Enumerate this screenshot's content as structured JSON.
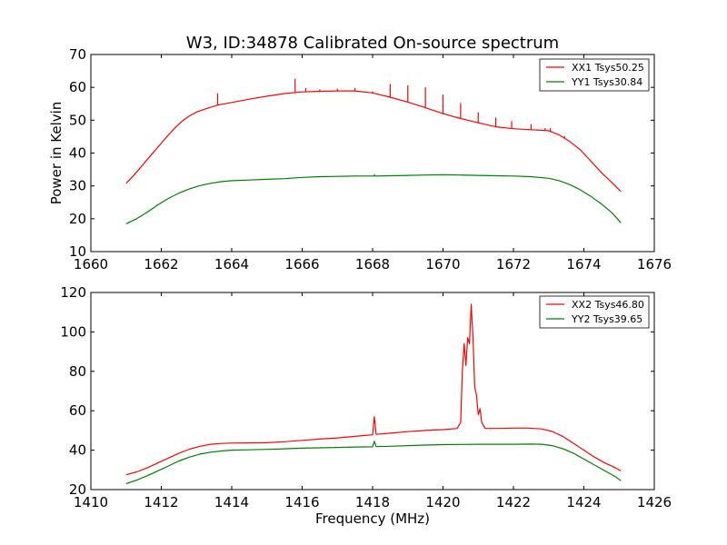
{
  "chart_data": [
    {
      "type": "line",
      "title": "W3, ID:34878 Calibrated On-source spectrum",
      "xlabel": "",
      "ylabel": "Power in Kelvin",
      "xlim": [
        1660,
        1676
      ],
      "ylim": [
        10,
        70
      ],
      "xticks": [
        "1660",
        "1662",
        "1664",
        "1666",
        "1668",
        "1670",
        "1672",
        "1674",
        "1676"
      ],
      "yticks": [
        "10",
        "20",
        "30",
        "40",
        "50",
        "60",
        "70"
      ],
      "grid": false,
      "legend_position": "top-right",
      "series": [
        {
          "name": "XX1 Tsys50.25",
          "color": "#ff0000",
          "points": [
            [
              1661.0,
              30.8
            ],
            [
              1661.2,
              33
            ],
            [
              1661.4,
              35.5
            ],
            [
              1661.6,
              38
            ],
            [
              1661.8,
              40.5
            ],
            [
              1662.0,
              43
            ],
            [
              1662.2,
              45.5
            ],
            [
              1662.4,
              47.8
            ],
            [
              1662.6,
              49.8
            ],
            [
              1662.8,
              51.3
            ],
            [
              1663.0,
              52.5
            ],
            [
              1663.3,
              53.6
            ],
            [
              1663.6,
              54.6
            ],
            [
              1664.0,
              55.4
            ],
            [
              1664.5,
              56.4
            ],
            [
              1665.0,
              57.3
            ],
            [
              1665.5,
              58.1
            ],
            [
              1666.0,
              58.6
            ],
            [
              1666.5,
              58.8
            ],
            [
              1667.0,
              58.9
            ],
            [
              1667.5,
              58.9
            ],
            [
              1668.0,
              58.3
            ],
            [
              1668.5,
              57
            ],
            [
              1669.0,
              55.5
            ],
            [
              1669.5,
              53.8
            ],
            [
              1670.0,
              52
            ],
            [
              1670.5,
              50.5
            ],
            [
              1671.0,
              49.2
            ],
            [
              1671.5,
              48
            ],
            [
              1672.0,
              47.4
            ],
            [
              1672.5,
              47.1
            ],
            [
              1673.0,
              46.8
            ],
            [
              1673.3,
              45.5
            ],
            [
              1673.6,
              43.5
            ],
            [
              1673.9,
              41
            ],
            [
              1674.2,
              37.5
            ],
            [
              1674.5,
              34
            ],
            [
              1674.8,
              31
            ],
            [
              1675.05,
              28.3
            ]
          ],
          "spikes": [
            [
              1663.6,
              58.2
            ],
            [
              1665.8,
              62.6
            ],
            [
              1666.1,
              59.8
            ],
            [
              1666.5,
              59.4
            ],
            [
              1667.0,
              59.6
            ],
            [
              1667.5,
              59.8
            ],
            [
              1668.0,
              58.8
            ],
            [
              1668.5,
              61
            ],
            [
              1669.0,
              60.6
            ],
            [
              1669.5,
              60
            ],
            [
              1670.0,
              57.8
            ],
            [
              1670.5,
              55.2
            ],
            [
              1671.0,
              52.4
            ],
            [
              1671.5,
              50.8
            ],
            [
              1671.95,
              49.7
            ],
            [
              1672.5,
              48.8
            ],
            [
              1672.9,
              47.6
            ],
            [
              1673.05,
              47.6
            ],
            [
              1673.45,
              45.2
            ]
          ]
        },
        {
          "name": "YY1 Tsys30.84",
          "color": "#008000",
          "points": [
            [
              1661.0,
              18.5
            ],
            [
              1661.3,
              20
            ],
            [
              1661.6,
              22
            ],
            [
              1661.9,
              24.2
            ],
            [
              1662.2,
              26.2
            ],
            [
              1662.5,
              27.8
            ],
            [
              1662.8,
              29.1
            ],
            [
              1663.1,
              30.1
            ],
            [
              1663.4,
              30.8
            ],
            [
              1663.7,
              31.3
            ],
            [
              1664.0,
              31.6
            ],
            [
              1664.5,
              31.8
            ],
            [
              1665.0,
              32
            ],
            [
              1665.5,
              32.2
            ],
            [
              1666.0,
              32.6
            ],
            [
              1666.5,
              32.8
            ],
            [
              1667.0,
              32.9
            ],
            [
              1667.5,
              33
            ],
            [
              1668.0,
              33
            ],
            [
              1668.5,
              33.1
            ],
            [
              1669.0,
              33.2
            ],
            [
              1669.5,
              33.3
            ],
            [
              1670.0,
              33.4
            ],
            [
              1670.5,
              33.3
            ],
            [
              1671.0,
              33.2
            ],
            [
              1671.5,
              33.1
            ],
            [
              1672.0,
              33
            ],
            [
              1672.5,
              32.8
            ],
            [
              1673.0,
              32.3
            ],
            [
              1673.3,
              31.6
            ],
            [
              1673.6,
              30.4
            ],
            [
              1673.9,
              28.8
            ],
            [
              1674.2,
              26.8
            ],
            [
              1674.5,
              24.5
            ],
            [
              1674.8,
              21.8
            ],
            [
              1675.05,
              18.8
            ]
          ],
          "spikes": [
            [
              1668.05,
              33.6
            ]
          ]
        }
      ]
    },
    {
      "type": "line",
      "title": "",
      "xlabel": "Frequency (MHz)",
      "ylabel": "",
      "xlim": [
        1410,
        1426
      ],
      "ylim": [
        20,
        120
      ],
      "xticks": [
        "1410",
        "1412",
        "1414",
        "1416",
        "1418",
        "1420",
        "1422",
        "1424",
        "1426"
      ],
      "yticks": [
        "20",
        "40",
        "60",
        "80",
        "100",
        "120"
      ],
      "grid": false,
      "legend_position": "top-right",
      "series": [
        {
          "name": "XX2 Tsys46.80",
          "color": "#ff0000",
          "points": [
            [
              1411.0,
              27.5
            ],
            [
              1411.3,
              29
            ],
            [
              1411.6,
              31
            ],
            [
              1411.9,
              33.5
            ],
            [
              1412.2,
              36
            ],
            [
              1412.5,
              38.5
            ],
            [
              1412.8,
              40.5
            ],
            [
              1413.1,
              42
            ],
            [
              1413.4,
              43
            ],
            [
              1413.7,
              43.4
            ],
            [
              1414.0,
              43.6
            ],
            [
              1414.5,
              43.7
            ],
            [
              1415.0,
              43.8
            ],
            [
              1415.5,
              44.3
            ],
            [
              1416.0,
              45
            ],
            [
              1416.5,
              45.6
            ],
            [
              1417.0,
              46.2
            ],
            [
              1417.5,
              47
            ],
            [
              1418.0,
              47.8
            ],
            [
              1418.05,
              57
            ],
            [
              1418.1,
              48
            ],
            [
              1418.5,
              48.6
            ],
            [
              1419.0,
              49.4
            ],
            [
              1419.5,
              50
            ],
            [
              1420.0,
              50.4
            ],
            [
              1420.4,
              51
            ],
            [
              1420.5,
              54
            ],
            [
              1420.55,
              80
            ],
            [
              1420.6,
              94
            ],
            [
              1420.65,
              83
            ],
            [
              1420.7,
              97
            ],
            [
              1420.75,
              94
            ],
            [
              1420.8,
              114
            ],
            [
              1420.85,
              98
            ],
            [
              1420.9,
              72
            ],
            [
              1420.95,
              68
            ],
            [
              1421.0,
              58
            ],
            [
              1421.05,
              61
            ],
            [
              1421.1,
              54
            ],
            [
              1421.2,
              51
            ],
            [
              1421.6,
              51
            ],
            [
              1422.0,
              51.2
            ],
            [
              1422.4,
              51.2
            ],
            [
              1422.8,
              50.8
            ],
            [
              1423.1,
              49.5
            ],
            [
              1423.4,
              47
            ],
            [
              1423.7,
              43.5
            ],
            [
              1424.0,
              40
            ],
            [
              1424.3,
              36.5
            ],
            [
              1424.6,
              33.5
            ],
            [
              1424.9,
              31
            ],
            [
              1425.05,
              29.5
            ]
          ]
        },
        {
          "name": "YY2 Tsys39.65",
          "color": "#008000",
          "points": [
            [
              1411.0,
              23
            ],
            [
              1411.3,
              24.8
            ],
            [
              1411.6,
              27
            ],
            [
              1411.9,
              29.5
            ],
            [
              1412.2,
              32
            ],
            [
              1412.5,
              34.5
            ],
            [
              1412.8,
              36.5
            ],
            [
              1413.1,
              38
            ],
            [
              1413.4,
              39
            ],
            [
              1413.7,
              39.6
            ],
            [
              1414.0,
              40
            ],
            [
              1414.5,
              40.2
            ],
            [
              1415.0,
              40.4
            ],
            [
              1415.5,
              40.7
            ],
            [
              1416.0,
              41
            ],
            [
              1416.5,
              41.2
            ],
            [
              1417.0,
              41.4
            ],
            [
              1417.5,
              41.6
            ],
            [
              1418.0,
              41.7
            ],
            [
              1418.05,
              44.5
            ],
            [
              1418.1,
              41.8
            ],
            [
              1418.5,
              42
            ],
            [
              1419.0,
              42.3
            ],
            [
              1419.5,
              42.6
            ],
            [
              1420.0,
              42.8
            ],
            [
              1420.5,
              42.9
            ],
            [
              1421.0,
              43
            ],
            [
              1421.5,
              43
            ],
            [
              1422.0,
              43
            ],
            [
              1422.5,
              43.1
            ],
            [
              1422.8,
              43
            ],
            [
              1423.1,
              42.3
            ],
            [
              1423.4,
              40.8
            ],
            [
              1423.7,
              38.5
            ],
            [
              1424.0,
              35.5
            ],
            [
              1424.3,
              32.5
            ],
            [
              1424.6,
              29.5
            ],
            [
              1424.9,
              26.5
            ],
            [
              1425.05,
              24.5
            ]
          ]
        }
      ]
    }
  ]
}
